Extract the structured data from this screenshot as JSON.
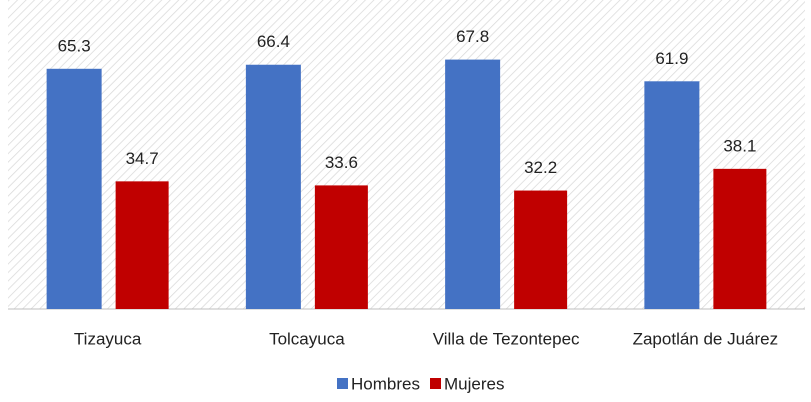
{
  "chart_data": {
    "type": "bar",
    "categories": [
      "Tizayuca",
      "Tolcayuca",
      "Villa de Tezontepec",
      "Zapotlán de Juárez"
    ],
    "series": [
      {
        "name": "Hombres",
        "color": "#4472c4",
        "values": [
          65.3,
          66.4,
          67.8,
          61.9
        ]
      },
      {
        "name": "Mujeres",
        "color": "#c00000",
        "values": [
          34.7,
          33.6,
          32.2,
          38.1
        ]
      }
    ],
    "ylim": [
      0,
      84
    ]
  }
}
